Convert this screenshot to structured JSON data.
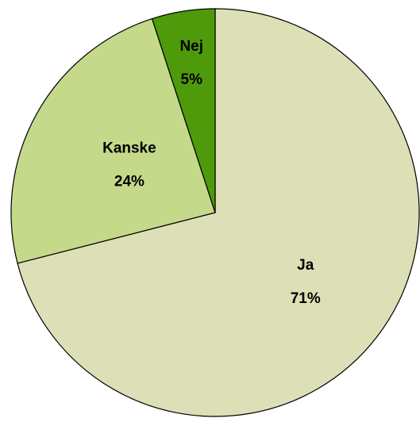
{
  "chart_data": {
    "type": "pie",
    "categories": [
      "Ja",
      "Kanske",
      "Nej"
    ],
    "values": [
      71,
      24,
      5
    ],
    "value_labels": [
      "71%",
      "24%",
      "5%"
    ],
    "colors": [
      "#dde0b6",
      "#c5d98b",
      "#4f9a0b"
    ]
  }
}
